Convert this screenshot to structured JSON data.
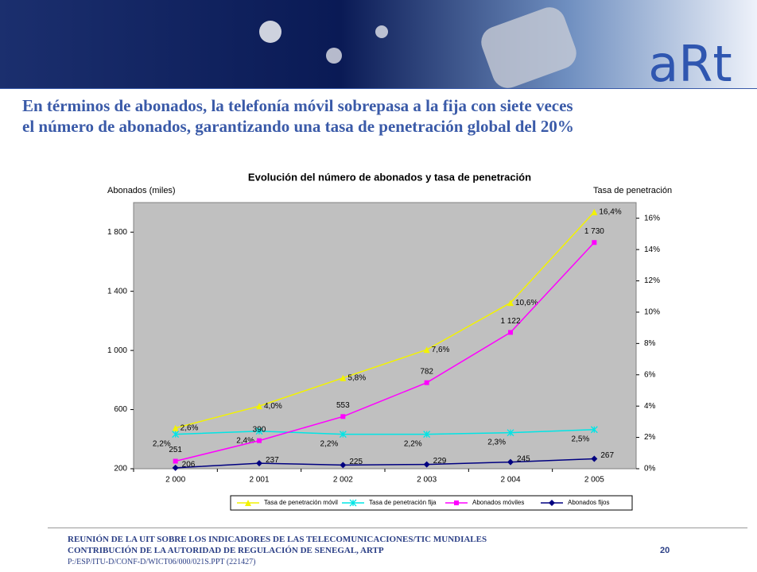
{
  "slide": {
    "logo": "aRt",
    "title_lines": [
      "En términos de abonados, la telefonía móvil sobrepasa a la fija con siete veces",
      "el número de abonados, garantizando una tasa de penetración global del 20%"
    ],
    "footer": [
      "REUNIÓN DE LA UIT SOBRE LOS INDICADORES DE LAS TELECOMUNICACIONES/TIC MUNDIALES",
      "CONTRIBUCIÓN DE LA AUTORIDAD DE REGULACIÓN DE SENEGAL, ARTP",
      "P:/ESP/ITU-D/CONF-D/WICT06/000/021S.PPT (221427)"
    ],
    "page_number": "20"
  },
  "chart_data": {
    "type": "line",
    "title": "Evolución del número de abonados y tasa de penetración",
    "y_label": "Abonados (miles)",
    "y2_label": "Tasa de penetración",
    "categories": [
      "2 000",
      "2 001",
      "2 002",
      "2 003",
      "2 004",
      "2 005"
    ],
    "ylim": [
      200,
      2000
    ],
    "yticks": [
      200,
      600,
      {
        "value": 1000,
        "label": "1 000"
      },
      {
        "value": 1400,
        "label": "1 400"
      },
      {
        "value": 1800,
        "label": "1 800"
      }
    ],
    "y2lim": [
      0,
      17
    ],
    "y2ticks": [
      {
        "value": 0,
        "label": "0%"
      },
      {
        "value": 2,
        "label": "2%"
      },
      {
        "value": 4,
        "label": "4%"
      },
      {
        "value": 6,
        "label": "6%"
      },
      {
        "value": 8,
        "label": "8%"
      },
      {
        "value": 10,
        "label": "10%"
      },
      {
        "value": 12,
        "label": "12%"
      },
      {
        "value": 14,
        "label": "14%"
      },
      {
        "value": 16,
        "label": "16%"
      }
    ],
    "plot_background": "#c0c0c0",
    "legend": "bottom",
    "series": [
      {
        "name": "Tasa de penetración móvil",
        "color": "#f2f200",
        "marker": "triangle",
        "axis": "y2",
        "values": [
          2.6,
          4.0,
          5.8,
          7.6,
          10.6,
          16.4
        ],
        "value_labels": [
          "2,6%",
          "4,0%",
          "5,8%",
          "7,6%",
          "10,6%",
          "16,4%"
        ]
      },
      {
        "name": "Tasa de penetración fija",
        "color": "#00e5e5",
        "marker": "cross",
        "axis": "y2",
        "values": [
          2.2,
          2.4,
          2.2,
          2.2,
          2.3,
          2.5
        ],
        "value_labels": [
          "2,2%",
          "2,4%",
          "2,2%",
          "2,2%",
          "2,3%",
          "2,5%"
        ]
      },
      {
        "name": "Abonados móviles",
        "color": "#ff00ff",
        "marker": "square",
        "values": [
          251,
          390,
          553,
          782,
          1122,
          1730
        ],
        "value_labels": [
          "251",
          "390",
          "553",
          "782",
          "1 122",
          "1 730"
        ]
      },
      {
        "name": "Abonados fijos",
        "color": "#000080",
        "marker": "diamond",
        "values": [
          206,
          237,
          225,
          229,
          245,
          267
        ]
      }
    ]
  }
}
